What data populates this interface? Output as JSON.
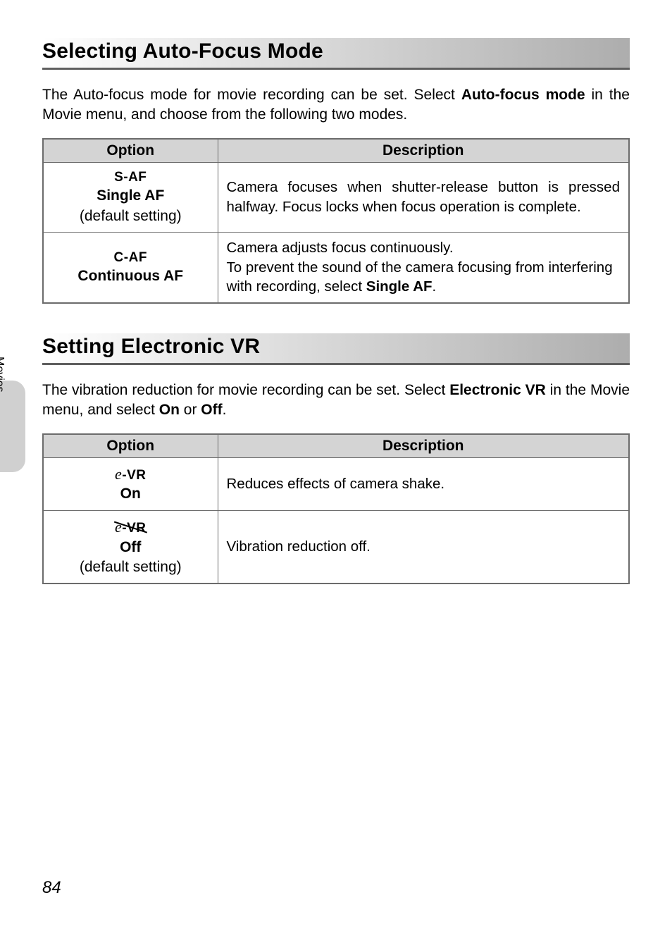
{
  "sidetab": {
    "label": "Movies"
  },
  "section_af": {
    "heading": "Selecting Auto-Focus Mode",
    "intro_pre": "The Auto-focus mode for movie recording can be set. Select ",
    "intro_bold": "Auto-focus mode",
    "intro_post": " in the Movie menu, and choose from the following two modes.",
    "col_option": "Option",
    "col_desc": "Description",
    "rows": [
      {
        "icon": "S-AF",
        "name": "Single AF",
        "default": "(default setting)",
        "desc": "Camera focuses when shutter-release button is pressed halfway. Focus locks when focus operation is complete."
      },
      {
        "icon": "C-AF",
        "name": "Continuous AF",
        "default": "",
        "desc_pre": "Camera adjusts focus continuously.\nTo prevent the sound of the camera focusing from interfering with recording, select ",
        "desc_bold": "Single AF",
        "desc_post": "."
      }
    ]
  },
  "section_vr": {
    "heading": "Setting Electronic VR",
    "intro_pre": "The vibration reduction for movie recording can be set. Select ",
    "intro_bold1": "Electronic VR",
    "intro_mid": " in the Movie menu, and select ",
    "intro_bold2": "On",
    "intro_or": " or ",
    "intro_bold3": "Off",
    "intro_end": ".",
    "col_option": "Option",
    "col_desc": "Description",
    "rows": [
      {
        "icon_e": "e",
        "icon_vr": "-VR",
        "name": "On",
        "default": "",
        "desc": "Reduces effects of camera shake."
      },
      {
        "icon_e": "e",
        "icon_vr": "-VR",
        "name": "Off",
        "default": "(default setting)",
        "desc": "Vibration reduction off."
      }
    ]
  },
  "page_number": "84"
}
